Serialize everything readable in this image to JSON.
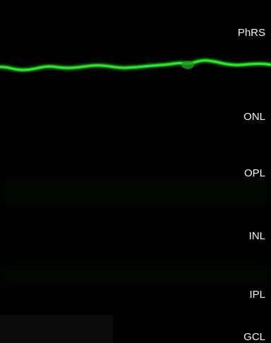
{
  "figure": {
    "signal_color": "#2ee82e",
    "background_color": "#000000",
    "label_color": "#f2f2f2",
    "layers": [
      {
        "label": "PhRS"
      },
      {
        "label": "ONL"
      },
      {
        "label": "OPL"
      },
      {
        "label": "INL"
      },
      {
        "label": "IPL"
      },
      {
        "label": "GCL"
      }
    ]
  }
}
